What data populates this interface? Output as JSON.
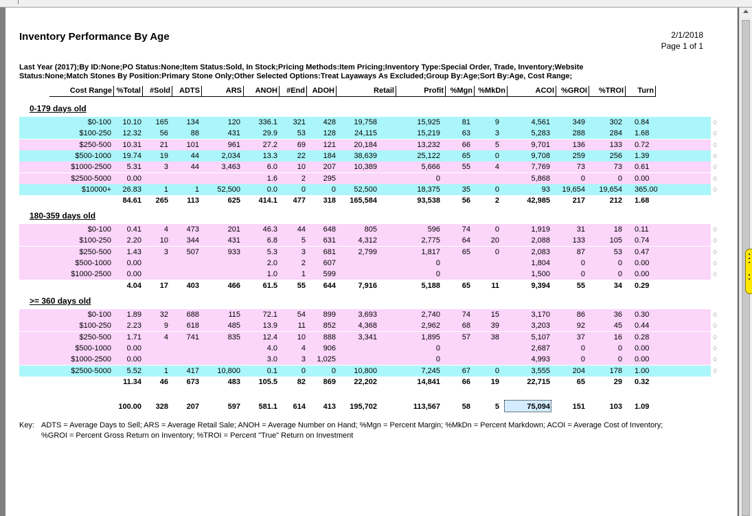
{
  "report": {
    "title": "Inventory Performance By Age",
    "date": "2/1/2018",
    "page": "Page 1 of 1",
    "criteria": "Last Year (2017);By ID:None;PO Status:None;Item Status:Sold, In Stock;Pricing Methods:Item Pricing;Inventory Type:Special Order, Trade, Inventory;Website\nStatus:None;Match Stones By Position:Primary Stone Only;Other Selected Options:Treat Layaways As Excluded;Group By:Age;Sort By:Age, Cost Range;"
  },
  "columns": [
    "Cost Range",
    "%Total",
    "#Sold",
    "ADTS",
    "ARS",
    "ANOH",
    "#End",
    "ADOH",
    "Retail",
    "Profit",
    "%Mgn",
    "%MkDn",
    "ACOI",
    "%GROI",
    "%TROI",
    "Turn"
  ],
  "sections": [
    {
      "name": "0-179 days old",
      "rows": [
        {
          "bg": "cyan",
          "cells": [
            "$0-100",
            "10.10",
            "165",
            "134",
            "120",
            "336.1",
            "321",
            "428",
            "19,758",
            "15,925",
            "81",
            "9",
            "4,561",
            "349",
            "302",
            "0.84"
          ]
        },
        {
          "bg": "cyan",
          "cells": [
            "$100-250",
            "12.32",
            "56",
            "88",
            "431",
            "29.9",
            "53",
            "128",
            "24,115",
            "15,219",
            "63",
            "3",
            "5,283",
            "288",
            "284",
            "1.68"
          ]
        },
        {
          "bg": "pink",
          "cells": [
            "$250-500",
            "10.31",
            "21",
            "101",
            "961",
            "27.2",
            "69",
            "121",
            "20,184",
            "13,232",
            "66",
            "5",
            "9,701",
            "136",
            "133",
            "0.72"
          ]
        },
        {
          "bg": "cyan",
          "cells": [
            "$500-1000",
            "19.74",
            "19",
            "44",
            "2,034",
            "13.3",
            "22",
            "184",
            "38,639",
            "25,122",
            "65",
            "0",
            "9,708",
            "259",
            "256",
            "1.39"
          ]
        },
        {
          "bg": "pink",
          "cells": [
            "$1000-2500",
            "5.31",
            "3",
            "44",
            "3,463",
            "6.0",
            "10",
            "207",
            "10,389",
            "5,666",
            "55",
            "4",
            "7,769",
            "73",
            "73",
            "0.61"
          ]
        },
        {
          "bg": "pink",
          "cells": [
            "$2500-5000",
            "0.00",
            "",
            "",
            "",
            "1.6",
            "2",
            "295",
            "",
            "0",
            "",
            "",
            "5,868",
            "0",
            "0",
            "0.00"
          ]
        },
        {
          "bg": "cyan",
          "cells": [
            "$10000+",
            "26.83",
            "1",
            "1",
            "52,500",
            "0.0",
            "0",
            "0",
            "52,500",
            "18,375",
            "35",
            "0",
            "93",
            "19,654",
            "19,654",
            "365.00"
          ]
        }
      ],
      "total": [
        "",
        "84.61",
        "265",
        "113",
        "625",
        "414.1",
        "477",
        "318",
        "165,584",
        "93,538",
        "56",
        "2",
        "42,985",
        "217",
        "212",
        "1.68"
      ]
    },
    {
      "name": "180-359 days old",
      "rows": [
        {
          "bg": "pink",
          "cells": [
            "$0-100",
            "0.41",
            "4",
            "473",
            "201",
            "46.3",
            "44",
            "648",
            "805",
            "596",
            "74",
            "0",
            "1,919",
            "31",
            "18",
            "0.11"
          ]
        },
        {
          "bg": "pink",
          "cells": [
            "$100-250",
            "2.20",
            "10",
            "344",
            "431",
            "6.8",
            "5",
            "631",
            "4,312",
            "2,775",
            "64",
            "20",
            "2,088",
            "133",
            "105",
            "0.74"
          ]
        },
        {
          "bg": "pink",
          "cells": [
            "$250-500",
            "1.43",
            "3",
            "507",
            "933",
            "5.3",
            "3",
            "681",
            "2,799",
            "1,817",
            "65",
            "0",
            "2,083",
            "87",
            "53",
            "0.47"
          ]
        },
        {
          "bg": "pink",
          "cells": [
            "$500-1000",
            "0.00",
            "",
            "",
            "",
            "2.0",
            "2",
            "607",
            "",
            "0",
            "",
            "",
            "1,804",
            "0",
            "0",
            "0.00"
          ]
        },
        {
          "bg": "pink",
          "cells": [
            "$1000-2500",
            "0.00",
            "",
            "",
            "",
            "1.0",
            "1",
            "599",
            "",
            "0",
            "",
            "",
            "1,500",
            "0",
            "0",
            "0.00"
          ]
        }
      ],
      "total": [
        "",
        "4.04",
        "17",
        "403",
        "466",
        "61.5",
        "55",
        "644",
        "7,916",
        "5,188",
        "65",
        "11",
        "9,394",
        "55",
        "34",
        "0.29"
      ]
    },
    {
      "name": ">= 360 days old",
      "rows": [
        {
          "bg": "pink",
          "cells": [
            "$0-100",
            "1.89",
            "32",
            "688",
            "115",
            "72.1",
            "54",
            "899",
            "3,693",
            "2,740",
            "74",
            "15",
            "3,170",
            "86",
            "36",
            "0.30"
          ]
        },
        {
          "bg": "pink",
          "cells": [
            "$100-250",
            "2.23",
            "9",
            "618",
            "485",
            "13.9",
            "11",
            "852",
            "4,368",
            "2,962",
            "68",
            "39",
            "3,203",
            "92",
            "45",
            "0.44"
          ]
        },
        {
          "bg": "pink",
          "cells": [
            "$250-500",
            "1.71",
            "4",
            "741",
            "835",
            "12.4",
            "10",
            "888",
            "3,341",
            "1,895",
            "57",
            "38",
            "5,107",
            "37",
            "16",
            "0.28"
          ]
        },
        {
          "bg": "pink",
          "cells": [
            "$500-1000",
            "0.00",
            "",
            "",
            "",
            "4.0",
            "4",
            "906",
            "",
            "0",
            "",
            "",
            "2,687",
            "0",
            "0",
            "0.00"
          ]
        },
        {
          "bg": "pink",
          "cells": [
            "$1000-2500",
            "0.00",
            "",
            "",
            "",
            "3.0",
            "3",
            "1,025",
            "",
            "0",
            "",
            "",
            "4,993",
            "0",
            "0",
            "0.00"
          ]
        },
        {
          "bg": "cyan",
          "cells": [
            "$2500-5000",
            "5.52",
            "1",
            "417",
            "10,800",
            "0.1",
            "0",
            "0",
            "10,800",
            "7,245",
            "67",
            "0",
            "3,555",
            "204",
            "178",
            "1.00"
          ]
        }
      ],
      "total": [
        "",
        "11.34",
        "46",
        "673",
        "483",
        "105.5",
        "82",
        "869",
        "22,202",
        "14,841",
        "66",
        "19",
        "22,715",
        "65",
        "29",
        "0.32"
      ]
    }
  ],
  "grand_total": [
    "",
    "100.00",
    "328",
    "207",
    "597",
    "581.1",
    "614",
    "413",
    "195,702",
    "113,567",
    "58",
    "5",
    "75,094",
    "151",
    "103",
    "1.09"
  ],
  "key": {
    "label": "Key:",
    "line1": "ADTS = Average Days to Sell;  ARS = Average Retail Sale;  ANOH = Average Number on Hand;  %Mgn = Percent Margin;  %MkDn = Percent Markdown;  ACOI = Average Cost of Inventory;",
    "line2": "%GROI = Percent Gross Return on Inventory;  %TROI = Percent \"True\" Return on Investment"
  },
  "row_icon": "diamond-ring-icon",
  "colors": {
    "cyan_row": "#aaf6fa",
    "pink_row": "#fbd5fa",
    "selected_cell": "#d3ecff"
  }
}
